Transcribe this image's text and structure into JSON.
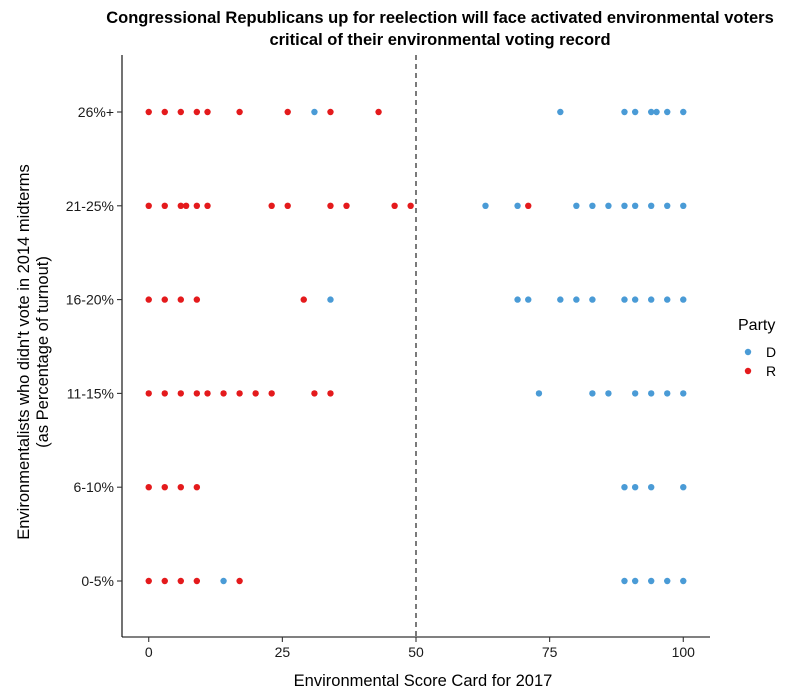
{
  "chart_data": {
    "type": "scatter",
    "title_lines": [
      "Congressional Republicans up for reelection will face activated environmental voters",
      "critical of their environmental voting record"
    ],
    "xlabel": "Environmental Score Card for 2017",
    "ylabel_lines": [
      "Environmentalists who didn't vote in 2014 midterms",
      "(as Percentage of turnout)"
    ],
    "xlim": [
      -5,
      105
    ],
    "x_ticks": [
      0,
      25,
      50,
      75,
      100
    ],
    "categories": [
      "0-5%",
      "6-10%",
      "11-15%",
      "16-20%",
      "21-25%",
      "26%+"
    ],
    "reference_line": {
      "x": 50,
      "style": "dashed"
    },
    "grid": false,
    "legend": {
      "title": "Party",
      "placement": "right"
    },
    "series": [
      {
        "name": "D",
        "color": "#4A9BD6",
        "points": [
          {
            "x": 14,
            "y": "0-5%"
          },
          {
            "x": 89,
            "y": "0-5%"
          },
          {
            "x": 91,
            "y": "0-5%"
          },
          {
            "x": 94,
            "y": "0-5%"
          },
          {
            "x": 97,
            "y": "0-5%"
          },
          {
            "x": 100,
            "y": "0-5%"
          },
          {
            "x": 89,
            "y": "6-10%"
          },
          {
            "x": 91,
            "y": "6-10%"
          },
          {
            "x": 94,
            "y": "6-10%"
          },
          {
            "x": 100,
            "y": "6-10%"
          },
          {
            "x": 73,
            "y": "11-15%"
          },
          {
            "x": 83,
            "y": "11-15%"
          },
          {
            "x": 86,
            "y": "11-15%"
          },
          {
            "x": 91,
            "y": "11-15%"
          },
          {
            "x": 94,
            "y": "11-15%"
          },
          {
            "x": 97,
            "y": "11-15%"
          },
          {
            "x": 100,
            "y": "11-15%"
          },
          {
            "x": 34,
            "y": "16-20%"
          },
          {
            "x": 69,
            "y": "16-20%"
          },
          {
            "x": 71,
            "y": "16-20%"
          },
          {
            "x": 77,
            "y": "16-20%"
          },
          {
            "x": 80,
            "y": "16-20%"
          },
          {
            "x": 83,
            "y": "16-20%"
          },
          {
            "x": 89,
            "y": "16-20%"
          },
          {
            "x": 91,
            "y": "16-20%"
          },
          {
            "x": 94,
            "y": "16-20%"
          },
          {
            "x": 97,
            "y": "16-20%"
          },
          {
            "x": 100,
            "y": "16-20%"
          },
          {
            "x": 63,
            "y": "21-25%"
          },
          {
            "x": 69,
            "y": "21-25%"
          },
          {
            "x": 80,
            "y": "21-25%"
          },
          {
            "x": 83,
            "y": "21-25%"
          },
          {
            "x": 86,
            "y": "21-25%"
          },
          {
            "x": 89,
            "y": "21-25%"
          },
          {
            "x": 91,
            "y": "21-25%"
          },
          {
            "x": 94,
            "y": "21-25%"
          },
          {
            "x": 97,
            "y": "21-25%"
          },
          {
            "x": 100,
            "y": "21-25%"
          },
          {
            "x": 31,
            "y": "26%+"
          },
          {
            "x": 77,
            "y": "26%+"
          },
          {
            "x": 89,
            "y": "26%+"
          },
          {
            "x": 91,
            "y": "26%+"
          },
          {
            "x": 94,
            "y": "26%+"
          },
          {
            "x": 95,
            "y": "26%+"
          },
          {
            "x": 97,
            "y": "26%+"
          },
          {
            "x": 100,
            "y": "26%+"
          }
        ]
      },
      {
        "name": "R",
        "color": "#E41A1C",
        "points": [
          {
            "x": 0,
            "y": "0-5%"
          },
          {
            "x": 3,
            "y": "0-5%"
          },
          {
            "x": 6,
            "y": "0-5%"
          },
          {
            "x": 9,
            "y": "0-5%"
          },
          {
            "x": 17,
            "y": "0-5%"
          },
          {
            "x": 0,
            "y": "6-10%"
          },
          {
            "x": 3,
            "y": "6-10%"
          },
          {
            "x": 6,
            "y": "6-10%"
          },
          {
            "x": 9,
            "y": "6-10%"
          },
          {
            "x": 0,
            "y": "11-15%"
          },
          {
            "x": 3,
            "y": "11-15%"
          },
          {
            "x": 6,
            "y": "11-15%"
          },
          {
            "x": 9,
            "y": "11-15%"
          },
          {
            "x": 11,
            "y": "11-15%"
          },
          {
            "x": 14,
            "y": "11-15%"
          },
          {
            "x": 17,
            "y": "11-15%"
          },
          {
            "x": 20,
            "y": "11-15%"
          },
          {
            "x": 23,
            "y": "11-15%"
          },
          {
            "x": 31,
            "y": "11-15%"
          },
          {
            "x": 34,
            "y": "11-15%"
          },
          {
            "x": 0,
            "y": "16-20%"
          },
          {
            "x": 3,
            "y": "16-20%"
          },
          {
            "x": 6,
            "y": "16-20%"
          },
          {
            "x": 9,
            "y": "16-20%"
          },
          {
            "x": 29,
            "y": "16-20%"
          },
          {
            "x": 0,
            "y": "21-25%"
          },
          {
            "x": 3,
            "y": "21-25%"
          },
          {
            "x": 6,
            "y": "21-25%"
          },
          {
            "x": 7,
            "y": "21-25%"
          },
          {
            "x": 9,
            "y": "21-25%"
          },
          {
            "x": 11,
            "y": "21-25%"
          },
          {
            "x": 23,
            "y": "21-25%"
          },
          {
            "x": 26,
            "y": "21-25%"
          },
          {
            "x": 34,
            "y": "21-25%"
          },
          {
            "x": 37,
            "y": "21-25%"
          },
          {
            "x": 46,
            "y": "21-25%"
          },
          {
            "x": 49,
            "y": "21-25%"
          },
          {
            "x": 71,
            "y": "21-25%"
          },
          {
            "x": 0,
            "y": "26%+"
          },
          {
            "x": 3,
            "y": "26%+"
          },
          {
            "x": 6,
            "y": "26%+"
          },
          {
            "x": 9,
            "y": "26%+"
          },
          {
            "x": 11,
            "y": "26%+"
          },
          {
            "x": 17,
            "y": "26%+"
          },
          {
            "x": 26,
            "y": "26%+"
          },
          {
            "x": 34,
            "y": "26%+"
          },
          {
            "x": 43,
            "y": "26%+"
          }
        ]
      }
    ]
  }
}
